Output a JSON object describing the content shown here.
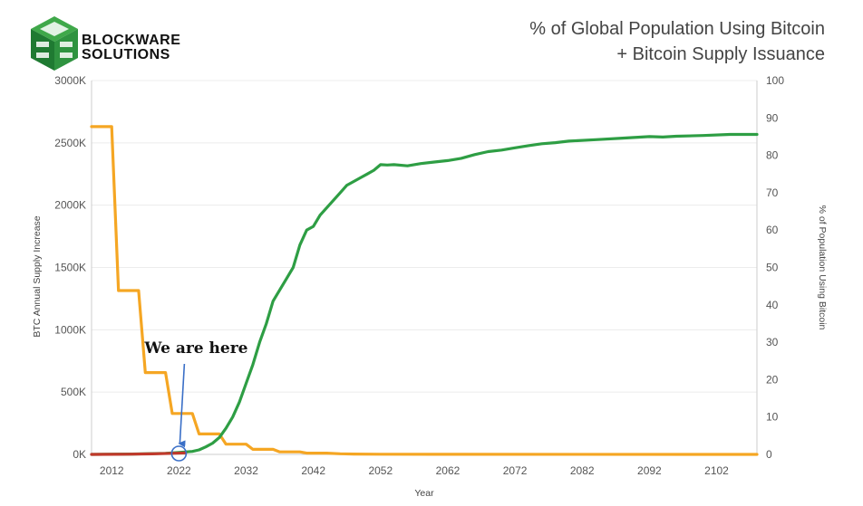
{
  "logo": {
    "line1": "BLOCKWARE",
    "line2": "SOLUTIONS",
    "colors": {
      "dark": "#1f7a32",
      "light": "#3fa84a"
    }
  },
  "header": {
    "title_line1": "% of Global Population Using Bitcoin",
    "title_line2": "+ Bitcoin Supply Issuance"
  },
  "chart_data": {
    "type": "line",
    "xlabel": "Year",
    "ylabel_left": "BTC Annual Supply Increase",
    "ylabel_right": "% of Population Using Bitcoin",
    "xlim": [
      2009,
      2108
    ],
    "x_ticks": [
      2012,
      2022,
      2032,
      2042,
      2052,
      2062,
      2072,
      2082,
      2092,
      2102
    ],
    "x_tick_labels": [
      "2012",
      "2022",
      "2032",
      "2042",
      "2052",
      "2062",
      "2072",
      "2082",
      "2092",
      "2102"
    ],
    "ylim_left": [
      0,
      3000000
    ],
    "y_left_ticks": [
      0,
      500000,
      1000000,
      1500000,
      2000000,
      2500000,
      3000000
    ],
    "y_left_tick_labels": [
      "0K",
      "500K",
      "1000K",
      "1500K",
      "2000K",
      "2500K",
      "3000K"
    ],
    "ylim_right": [
      0,
      100
    ],
    "y_right_ticks": [
      0,
      10,
      20,
      30,
      40,
      50,
      60,
      70,
      80,
      90,
      100
    ],
    "y_right_tick_labels": [
      "0",
      "10",
      "20",
      "30",
      "40",
      "50",
      "60",
      "70",
      "80",
      "90",
      "100"
    ],
    "grid": "horizontal",
    "colors": {
      "supply": "#f5a623",
      "population": "#2e9e44",
      "early": "#c0392b",
      "annotation": "#3a6fc7"
    },
    "series": [
      {
        "axis": "left",
        "color": "#f5a623",
        "x": [
          2009,
          2012,
          2012,
          2013,
          2016,
          2016,
          2017,
          2020,
          2020,
          2021,
          2024,
          2024,
          2025,
          2028,
          2028,
          2029,
          2032,
          2032,
          2033,
          2036,
          2036,
          2037,
          2040,
          2040,
          2041,
          2044,
          2044,
          2046,
          2048,
          2052,
          2060,
          2108
        ],
        "values": [
          2630000,
          2630000,
          2630000,
          1315000,
          1315000,
          1315000,
          657000,
          657000,
          657000,
          328500,
          328500,
          328500,
          164000,
          164000,
          164000,
          82000,
          82000,
          82000,
          41000,
          41000,
          41000,
          20500,
          20500,
          20500,
          10000,
          10000,
          10000,
          5000,
          3000,
          1500,
          500,
          0
        ]
      },
      {
        "axis": "right",
        "color": "#2e9e44",
        "x": [
          2009,
          2015,
          2020,
          2022,
          2024,
          2025,
          2026,
          2027,
          2028,
          2029,
          2030,
          2031,
          2032,
          2033,
          2034,
          2035,
          2036,
          2037,
          2038,
          2039,
          2040,
          2041,
          2042,
          2043,
          2044,
          2045,
          2046,
          2047,
          2048,
          2049,
          2050,
          2051,
          2052,
          2053,
          2054,
          2056,
          2058,
          2060,
          2062,
          2064,
          2066,
          2068,
          2070,
          2072,
          2074,
          2076,
          2078,
          2080,
          2084,
          2088,
          2092,
          2094,
          2096,
          2100,
          2104,
          2108
        ],
        "values": [
          0,
          0.1,
          0.3,
          0.5,
          0.8,
          1.2,
          2,
          3,
          4.5,
          7,
          10,
          14,
          19,
          24,
          30,
          35,
          41,
          44,
          47,
          50,
          56,
          60,
          61,
          64,
          66,
          68,
          70,
          72,
          73,
          74,
          75,
          76,
          77.5,
          77.4,
          77.5,
          77.2,
          77.8,
          78.2,
          78.6,
          79.2,
          80.2,
          81,
          81.4,
          82,
          82.6,
          83.1,
          83.4,
          83.8,
          84.2,
          84.6,
          85,
          84.9,
          85.1,
          85.3,
          85.6,
          85.6
        ]
      },
      {
        "axis": "right",
        "color": "#c0392b",
        "x": [
          2009,
          2014,
          2018,
          2021,
          2023
        ],
        "values": [
          0,
          0.05,
          0.15,
          0.3,
          0.4
        ]
      }
    ],
    "annotations": [
      {
        "text": "We are here",
        "x": 2022,
        "y_right": 0
      }
    ]
  }
}
